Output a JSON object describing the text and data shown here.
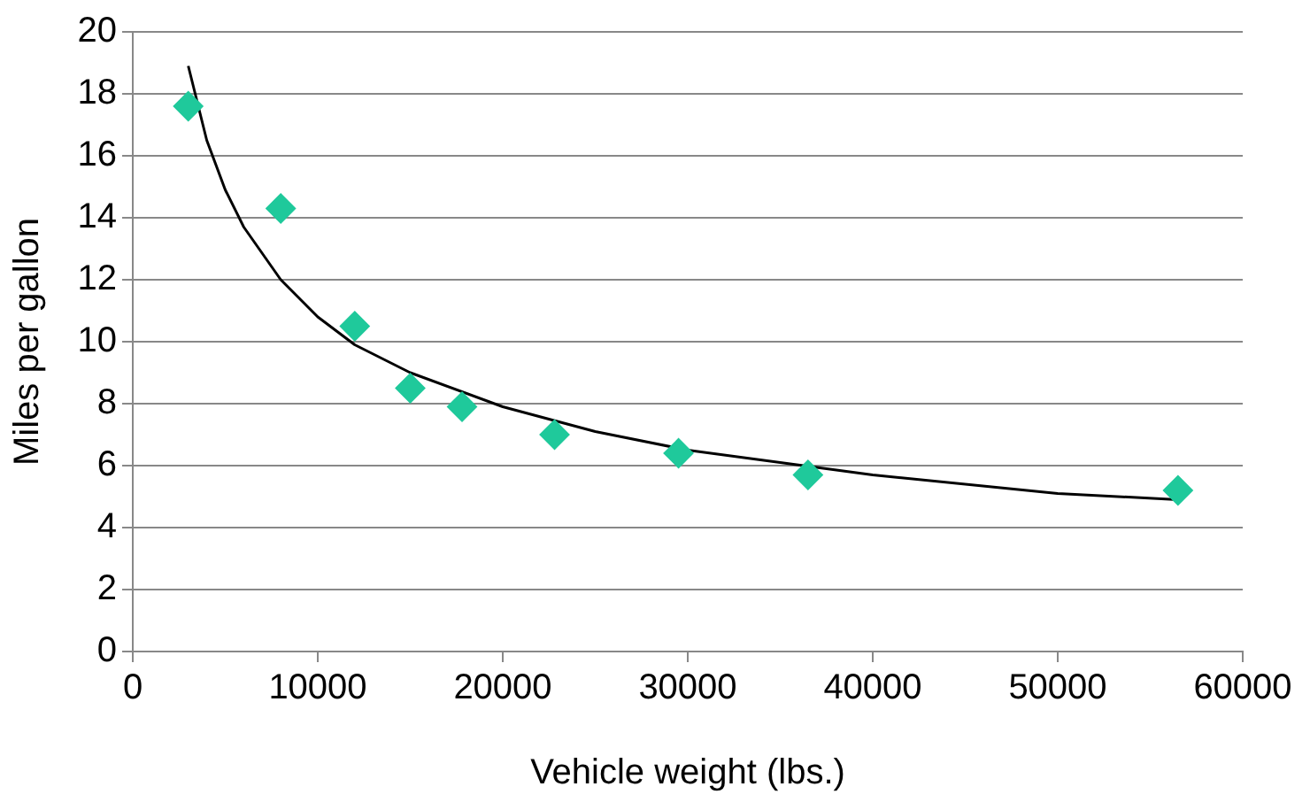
{
  "chart_data": {
    "type": "scatter",
    "xlabel": "Vehicle weight (lbs.)",
    "ylabel": "Miles per gallon",
    "xlim": [
      0,
      60000
    ],
    "xticks": [
      0,
      10000,
      20000,
      30000,
      40000,
      50000,
      60000
    ],
    "ylim": [
      0,
      20
    ],
    "yticks": [
      0,
      2,
      4,
      6,
      8,
      10,
      12,
      14,
      16,
      18,
      20
    ],
    "grid": "y",
    "legend": false,
    "series": [
      {
        "type": "scatter",
        "color": "#1fc99b",
        "marker": "diamond",
        "x": [
          3000,
          8000,
          12000,
          15000,
          17800,
          22800,
          29500,
          36500,
          56500
        ],
        "values": [
          17.6,
          14.3,
          10.5,
          8.5,
          7.9,
          7.0,
          6.4,
          5.7,
          5.2
        ]
      },
      {
        "type": "line",
        "color": "#000000",
        "marker": "none",
        "line_style": "solid",
        "x": [
          3000,
          4000,
          5000,
          6000,
          8000,
          10000,
          12000,
          15000,
          20000,
          25000,
          30000,
          40000,
          50000,
          56500
        ],
        "values": [
          18.9,
          16.5,
          14.9,
          13.7,
          12.0,
          10.8,
          9.9,
          9.0,
          7.9,
          7.1,
          6.5,
          5.7,
          5.1,
          4.9
        ]
      }
    ]
  }
}
